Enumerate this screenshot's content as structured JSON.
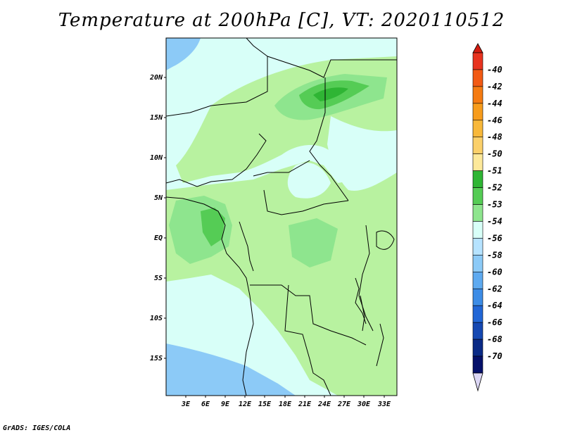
{
  "title": "Temperature at 200hPa [C], VT: 2020110512",
  "footer": "GrADS: IGES/COLA",
  "axes": {
    "lat_labels": [
      "20N",
      "15N",
      "10N",
      "5N",
      "EQ",
      "5S",
      "10S",
      "15S"
    ],
    "lon_labels": [
      "3E",
      "6E",
      "9E",
      "12E",
      "15E",
      "18E",
      "21E",
      "24E",
      "27E",
      "30E",
      "33E"
    ]
  },
  "legend": {
    "labels": [
      "-40",
      "-42",
      "-44",
      "-46",
      "-48",
      "-50",
      "-51",
      "-52",
      "-53",
      "-54",
      "-56",
      "-58",
      "-60",
      "-62",
      "-64",
      "-66",
      "-68",
      "-70"
    ],
    "colors": [
      "#e8331f",
      "#f25a14",
      "#f57b12",
      "#f79c1c",
      "#f8b83a",
      "#fbd06a",
      "#fde99a",
      "#2fb534",
      "#55cc55",
      "#8ee58e",
      "#d8fff8",
      "#b6e3ff",
      "#8ccaf7",
      "#5eaaf0",
      "#3c8ce6",
      "#2166d6",
      "#1548b2",
      "#0a2a86",
      "#05106a"
    ],
    "top_arrow_color": "#d31c10",
    "bottom_arrow_color": "#dcd7f5"
  },
  "colors": {
    "field_light_cyan": "#d8fff8",
    "field_pale_green": "#b8f2a0",
    "field_mid_green": "#8ee58e",
    "field_green": "#55cc55",
    "field_dark_green": "#2fb534",
    "field_blue": "#8ccaf7"
  }
}
